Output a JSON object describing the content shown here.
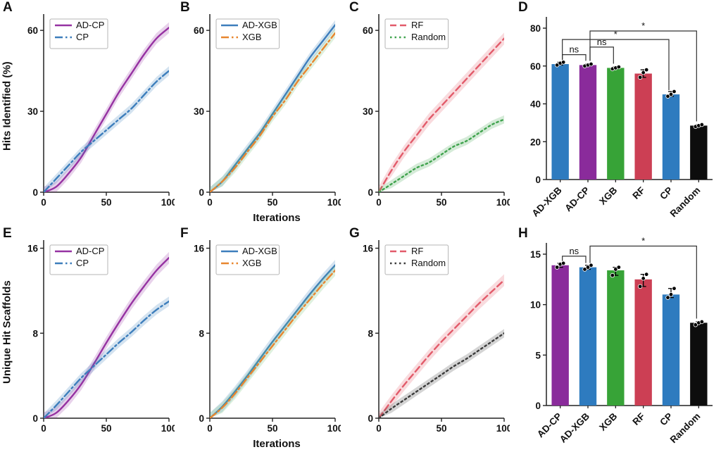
{
  "axis_labels": {
    "hits": "Hits Identified (%)",
    "scaffolds": "Unique Hit Scaffolds",
    "iterations": "Iterations"
  },
  "chart_data": [
    {
      "panel": "A",
      "type": "line",
      "x": [
        0,
        10,
        20,
        30,
        40,
        50,
        60,
        70,
        80,
        90,
        100
      ],
      "xlim": [
        0,
        100
      ],
      "ylim": [
        0,
        65
      ],
      "xticks": [
        0,
        50,
        100
      ],
      "yticks": [
        0,
        30,
        60
      ],
      "series": [
        {
          "name": "AD-CP",
          "color": "#9632a2",
          "dash": "solid",
          "band": 2.0,
          "values": [
            0,
            2,
            7,
            13,
            21,
            29,
            37,
            44,
            51,
            57,
            61
          ]
        },
        {
          "name": "CP",
          "color": "#3d7ebc",
          "dash": "dashdot",
          "band": 1.7,
          "values": [
            0,
            5,
            10,
            15,
            19,
            23,
            27,
            31,
            36,
            41,
            45
          ]
        }
      ]
    },
    {
      "panel": "B",
      "type": "line",
      "x": [
        0,
        10,
        20,
        30,
        40,
        50,
        60,
        70,
        80,
        90,
        100
      ],
      "xlim": [
        0,
        100
      ],
      "ylim": [
        0,
        65
      ],
      "xticks": [
        0,
        50,
        100
      ],
      "yticks": [
        0,
        30,
        60
      ],
      "series": [
        {
          "name": "AD-XGB",
          "color": "#3d7ebc",
          "dash": "solid",
          "band": 1.8,
          "values": [
            0,
            4,
            10,
            16,
            22,
            29,
            36,
            43,
            50,
            56,
            62
          ]
        },
        {
          "name": "XGB",
          "color": "#e8862f",
          "dash": "dashdot",
          "band": 1.8,
          "band_color": "#6fbf6f",
          "values": [
            0,
            4,
            9,
            15,
            21,
            28,
            34,
            41,
            47,
            53,
            59
          ]
        }
      ]
    },
    {
      "panel": "C",
      "type": "line",
      "x": [
        0,
        10,
        20,
        30,
        40,
        50,
        60,
        70,
        80,
        90,
        100
      ],
      "xlim": [
        0,
        100
      ],
      "ylim": [
        0,
        65
      ],
      "xticks": [
        0,
        50,
        100
      ],
      "yticks": [
        0,
        30,
        60
      ],
      "series": [
        {
          "name": "RF",
          "color": "#e25b6a",
          "dash": "dashed",
          "band": 2.2,
          "values": [
            0,
            8,
            15,
            21,
            27,
            32,
            37,
            42,
            47,
            52,
            57
          ]
        },
        {
          "name": "Random",
          "color": "#3fa34d",
          "dash": "dotted",
          "band": 1.5,
          "values": [
            0,
            3,
            6,
            9,
            11,
            14,
            17,
            19,
            22,
            25,
            27
          ]
        }
      ]
    },
    {
      "panel": "D",
      "type": "bar",
      "ylim": [
        0,
        80
      ],
      "yticks": [
        0,
        20,
        40,
        60,
        80
      ],
      "categories": [
        "AD-XGB",
        "AD-CP",
        "XGB",
        "RF",
        "CP",
        "Random"
      ],
      "values": [
        61,
        60.5,
        59,
        56,
        45,
        28.5
      ],
      "colors": [
        "#2e7bbf",
        "#8a2b9b",
        "#37a337",
        "#cc3f54",
        "#2e7bbf",
        "#0d0d0d"
      ],
      "dots": [
        [
          60.5,
          61.5,
          62
        ],
        [
          60,
          60.5,
          61
        ],
        [
          58.5,
          59,
          59.5
        ],
        [
          54,
          56.5,
          58
        ],
        [
          44,
          45,
          46.5
        ],
        [
          28,
          28.5,
          29
        ]
      ],
      "brackets": [
        {
          "from": 0,
          "to": 1,
          "label": "ns",
          "y": 66
        },
        {
          "from": 1,
          "to": 2,
          "label": "ns",
          "y": 70
        },
        {
          "from": 0,
          "to": 4,
          "label": "*",
          "y": 74
        },
        {
          "from": 1,
          "to": 5,
          "label": "*",
          "y": 78.5
        }
      ]
    },
    {
      "panel": "E",
      "type": "line",
      "x": [
        0,
        10,
        20,
        30,
        40,
        50,
        60,
        70,
        80,
        90,
        100
      ],
      "xlim": [
        0,
        100
      ],
      "ylim": [
        0,
        16.5
      ],
      "xticks": [
        0,
        50,
        100
      ],
      "yticks": [
        0,
        8,
        16
      ],
      "series": [
        {
          "name": "AD-CP",
          "color": "#9632a2",
          "dash": "solid",
          "band": 0.55,
          "values": [
            0,
            0.5,
            1.7,
            3.2,
            5.1,
            7.1,
            9.0,
            10.8,
            12.4,
            13.9,
            15.1
          ]
        },
        {
          "name": "CP",
          "color": "#3d7ebc",
          "dash": "dashdot",
          "band": 0.45,
          "values": [
            0,
            1.2,
            2.5,
            3.8,
            4.9,
            6.0,
            7.1,
            8.1,
            9.2,
            10.2,
            11.0
          ]
        }
      ]
    },
    {
      "panel": "F",
      "type": "line",
      "x": [
        0,
        10,
        20,
        30,
        40,
        50,
        60,
        70,
        80,
        90,
        100
      ],
      "xlim": [
        0,
        100
      ],
      "ylim": [
        0,
        16.5
      ],
      "xticks": [
        0,
        50,
        100
      ],
      "yticks": [
        0,
        8,
        16
      ],
      "series": [
        {
          "name": "AD-XGB",
          "color": "#3d7ebc",
          "dash": "solid",
          "band": 0.5,
          "values": [
            0,
            1.1,
            2.5,
            4.0,
            5.6,
            7.2,
            8.7,
            10.2,
            11.7,
            13.1,
            14.4
          ]
        },
        {
          "name": "XGB",
          "color": "#e8862f",
          "dash": "dashdot",
          "band": 0.5,
          "band_color": "#6fbf6f",
          "values": [
            0,
            1.0,
            2.3,
            3.8,
            5.3,
            6.8,
            8.3,
            9.8,
            11.2,
            12.6,
            13.9
          ]
        }
      ]
    },
    {
      "panel": "G",
      "type": "line",
      "x": [
        0,
        10,
        20,
        30,
        40,
        50,
        60,
        70,
        80,
        90,
        100
      ],
      "xlim": [
        0,
        100
      ],
      "ylim": [
        0,
        16.5
      ],
      "xticks": [
        0,
        50,
        100
      ],
      "yticks": [
        0,
        8,
        16
      ],
      "series": [
        {
          "name": "RF",
          "color": "#e25b6a",
          "dash": "dashed",
          "band": 0.55,
          "values": [
            0,
            1.6,
            3.1,
            4.5,
            5.9,
            7.2,
            8.4,
            9.6,
            10.8,
            11.9,
            13.0
          ]
        },
        {
          "name": "Random",
          "color": "#3c3c3c",
          "dash": "dotted",
          "band": 0.4,
          "values": [
            0,
            0.9,
            1.7,
            2.5,
            3.3,
            4.1,
            4.9,
            5.6,
            6.4,
            7.2,
            8.0
          ]
        }
      ]
    },
    {
      "panel": "H",
      "type": "bar",
      "ylim": [
        0,
        15
      ],
      "yticks": [
        0,
        5,
        10,
        15
      ],
      "categories": [
        "AD-CP",
        "AD-XGB",
        "XGB",
        "RF",
        "CP",
        "Random"
      ],
      "values": [
        13.9,
        13.7,
        13.4,
        12.5,
        11,
        8.2
      ],
      "colors": [
        "#8a2b9b",
        "#2e7bbf",
        "#37a337",
        "#cc3f54",
        "#2e7bbf",
        "#0d0d0d"
      ],
      "dots": [
        [
          13.7,
          14,
          14.1
        ],
        [
          13.5,
          13.7,
          13.9
        ],
        [
          12.9,
          13.5,
          13.7
        ],
        [
          11.8,
          12.6,
          13
        ],
        [
          10.7,
          11,
          11.6
        ],
        [
          8,
          8.2,
          8.3
        ]
      ],
      "brackets": [
        {
          "from": 0,
          "to": 1,
          "label": "ns",
          "y": 14.8
        },
        {
          "from": 1,
          "to": 5,
          "label": "*",
          "y": 15.8
        }
      ]
    }
  ]
}
